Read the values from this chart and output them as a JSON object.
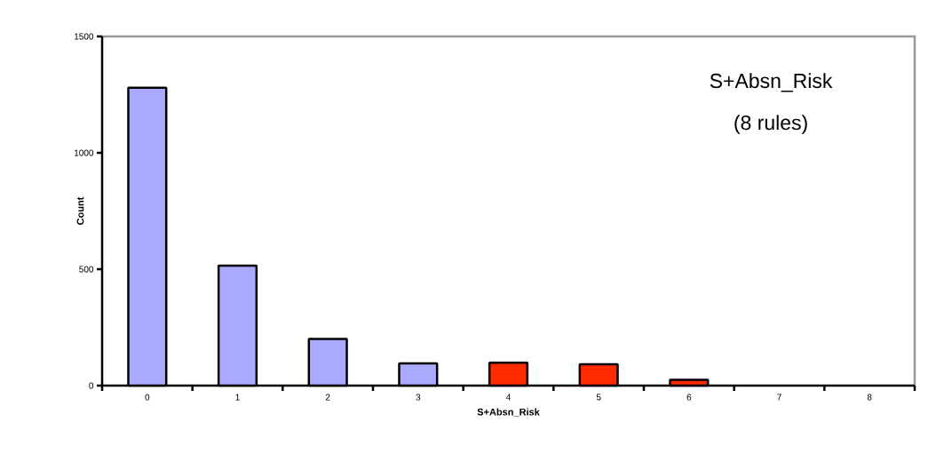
{
  "chart_data": {
    "type": "bar",
    "title": "S+Absn_Risk",
    "subtitle": "(8 rules)",
    "xlabel": "S+Absn_Risk",
    "ylabel": "Count",
    "categories": [
      "0",
      "1",
      "2",
      "3",
      "4",
      "5",
      "6",
      "7",
      "8"
    ],
    "values": [
      1280,
      515,
      200,
      95,
      98,
      92,
      25,
      0,
      0
    ],
    "colors": [
      "#aaaaff",
      "#aaaaff",
      "#aaaaff",
      "#aaaaff",
      "#ff2a00",
      "#ff2a00",
      "#ff2a00",
      "#ff2a00",
      "#ff2a00"
    ],
    "ylim": [
      0,
      1500
    ],
    "yticks": [
      0,
      500,
      1000,
      1500
    ],
    "grid": false
  }
}
